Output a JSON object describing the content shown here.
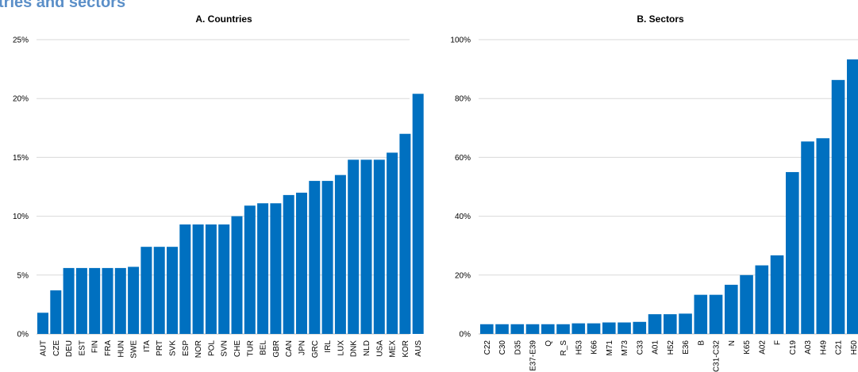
{
  "header": {
    "title": "tries and sectors"
  },
  "colors": {
    "bar": "#0070c0",
    "grid": "#d9d9d9",
    "title": "#5b8fc8"
  },
  "chart_data": [
    {
      "type": "bar",
      "title": "A. Countries",
      "ylim": [
        0,
        25
      ],
      "yticks": [
        "0%",
        "5%",
        "10%",
        "15%",
        "20%",
        "25%"
      ],
      "grid": true,
      "categories": [
        "AUT",
        "CZE",
        "DEU",
        "EST",
        "FIN",
        "FRA",
        "HUN",
        "SWE",
        "ITA",
        "PRT",
        "SVK",
        "ESP",
        "NOR",
        "POL",
        "SVN",
        "CHE",
        "TUR",
        "BEL",
        "GBR",
        "CAN",
        "JPN",
        "GRC",
        "IRL",
        "LUX",
        "DNK",
        "NLD",
        "USA",
        "MEX",
        "KOR",
        "AUS"
      ],
      "values": [
        1.8,
        3.7,
        5.6,
        5.6,
        5.6,
        5.6,
        5.6,
        5.7,
        7.4,
        7.4,
        7.4,
        9.3,
        9.3,
        9.3,
        9.3,
        10.0,
        10.9,
        11.1,
        11.1,
        11.8,
        12.0,
        13.0,
        13.0,
        13.5,
        14.8,
        14.8,
        14.8,
        15.4,
        17.0,
        20.4
      ]
    },
    {
      "type": "bar",
      "title": "B. Sectors",
      "ylim": [
        0,
        100
      ],
      "yticks": [
        "0%",
        "20%",
        "40%",
        "60%",
        "80%",
        "100%"
      ],
      "grid": true,
      "categories": [
        "C22",
        "C30",
        "D35",
        "E37-E39",
        "Q",
        "R_S",
        "H53",
        "K66",
        "M71",
        "M73",
        "C33",
        "A01",
        "H52",
        "E36",
        "B",
        "C31-C32",
        "N",
        "K65",
        "A02",
        "F",
        "C19",
        "A03",
        "H49",
        "C21",
        "H50"
      ],
      "values": [
        3.3,
        3.3,
        3.3,
        3.3,
        3.3,
        3.3,
        3.6,
        3.6,
        3.9,
        3.9,
        4.1,
        6.7,
        6.7,
        6.9,
        13.3,
        13.3,
        16.7,
        20.0,
        23.3,
        26.7,
        55.0,
        65.4,
        66.5,
        86.3,
        93.3
      ]
    }
  ]
}
